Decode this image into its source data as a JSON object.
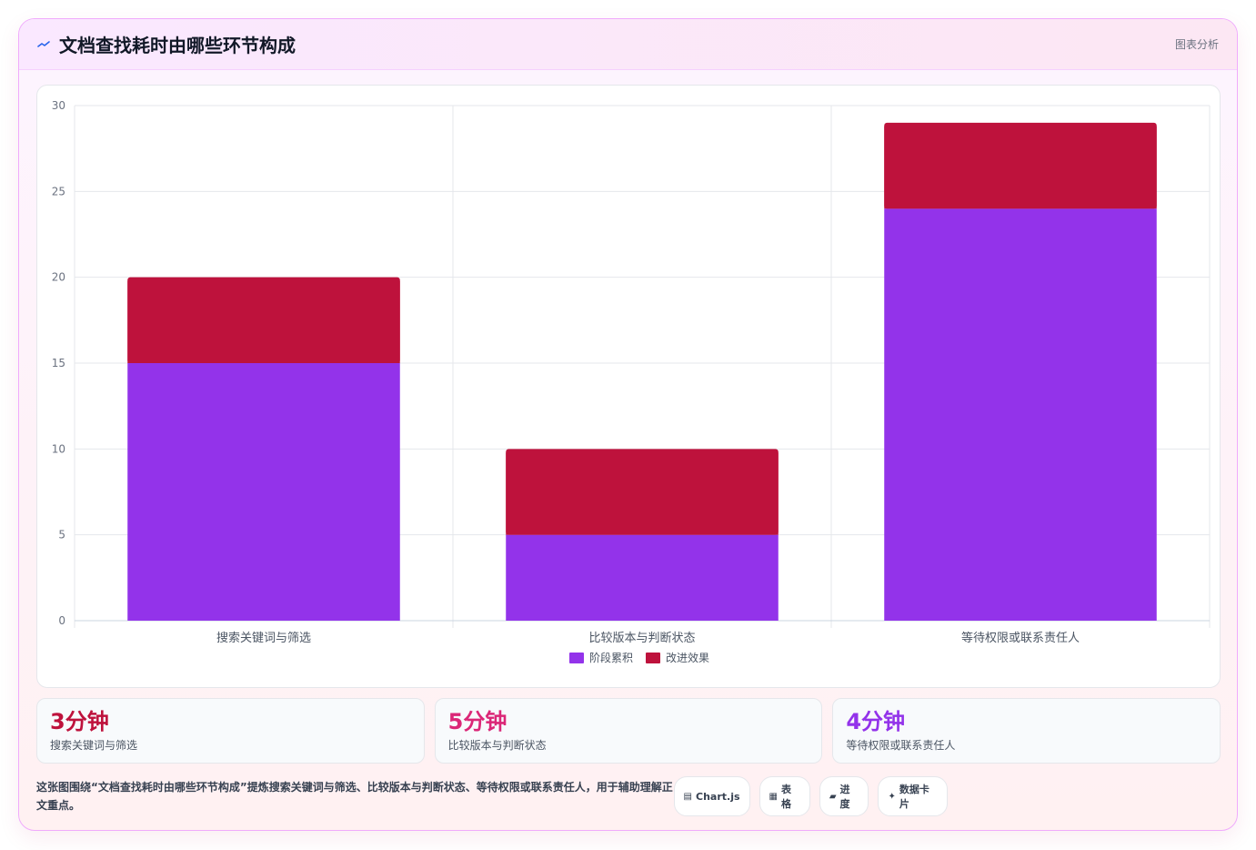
{
  "header": {
    "title": "文档查找耗时由哪些环节构成",
    "tag": "图表分析"
  },
  "chart_data": {
    "type": "bar",
    "stacked": true,
    "categories": [
      "搜索关键词与筛选",
      "比较版本与判断状态",
      "等待权限或联系责任人"
    ],
    "series": [
      {
        "name": "阶段累积",
        "values": [
          15,
          5,
          24
        ],
        "color": "#9333ea"
      },
      {
        "name": "改进效果",
        "values": [
          5,
          5,
          5
        ],
        "color": "#be123c"
      }
    ],
    "ylim": [
      0,
      30
    ],
    "yticks": [
      0,
      5,
      10,
      15,
      20,
      25,
      30
    ],
    "legend_position": "bottom",
    "grid": true
  },
  "stats": [
    {
      "value": "3分钟",
      "label": "搜索关键词与筛选",
      "color": "#be123c"
    },
    {
      "value": "5分钟",
      "label": "比较版本与判断状态",
      "color": "#db2777"
    },
    {
      "value": "4分钟",
      "label": "等待权限或联系责任人",
      "color": "#9333ea"
    }
  ],
  "footer": {
    "description": "这张图围绕“文档查找耗时由哪些环节构成”提炼搜索关键词与筛选、比较版本与判断状态、等待权限或联系责任人，用于辅助理解正文重点。",
    "chips": [
      {
        "icon": "chart-icon",
        "glyph": "▤",
        "label": "Chart.js"
      },
      {
        "icon": "table-icon",
        "glyph": "▦",
        "label": "表格"
      },
      {
        "icon": "progress-icon",
        "glyph": "▰",
        "label": "进度"
      },
      {
        "icon": "card-icon",
        "glyph": "✦",
        "label": "数据卡片"
      }
    ]
  }
}
